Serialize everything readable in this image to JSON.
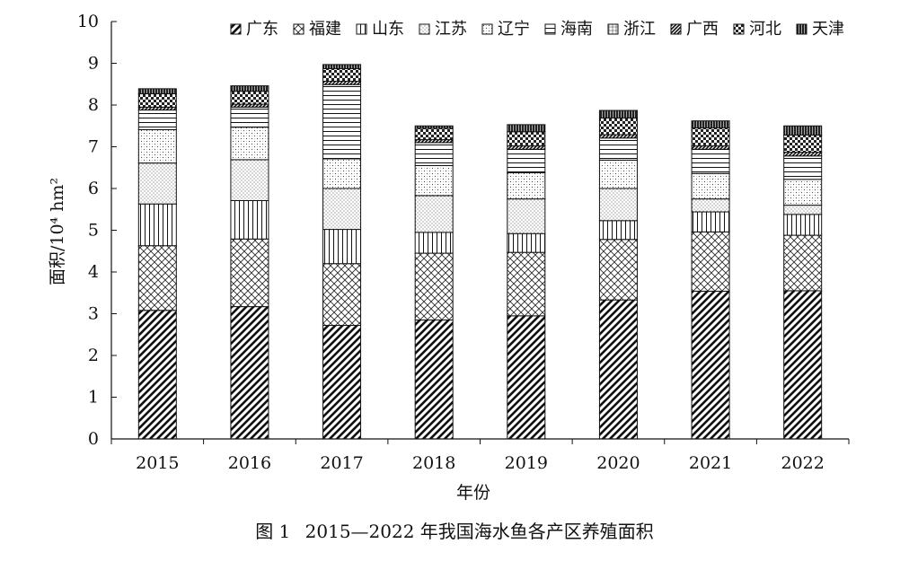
{
  "figure_caption": {
    "prefix": "图 1",
    "text": "2015—2022 年我国海水鱼各产区养殖面积"
  },
  "chart_data": {
    "type": "bar",
    "stacked": true,
    "categories": [
      "2015",
      "2016",
      "2017",
      "2018",
      "2019",
      "2020",
      "2021",
      "2022"
    ],
    "xlabel": "年份",
    "ylabel": "面积/10⁴ hm²",
    "ylim": [
      0,
      10
    ],
    "yticks": [
      0,
      1,
      2,
      3,
      4,
      5,
      6,
      7,
      8,
      9,
      10
    ],
    "grid": false,
    "legend_position": "top-right",
    "series": [
      {
        "name": "广东",
        "pattern": "diag-bold",
        "values": [
          3.08,
          3.17,
          2.72,
          2.85,
          2.95,
          3.33,
          3.54,
          3.55
        ]
      },
      {
        "name": "福建",
        "pattern": "crosshatch",
        "values": [
          1.55,
          1.62,
          1.48,
          1.6,
          1.52,
          1.45,
          1.42,
          1.33
        ]
      },
      {
        "name": "山东",
        "pattern": "vertical",
        "values": [
          1.0,
          0.92,
          0.82,
          0.5,
          0.45,
          0.45,
          0.48,
          0.5
        ]
      },
      {
        "name": "江苏",
        "pattern": "dots",
        "values": [
          0.98,
          0.98,
          0.98,
          0.88,
          0.83,
          0.77,
          0.31,
          0.22
        ]
      },
      {
        "name": "辽宁",
        "pattern": "grid-dots",
        "values": [
          0.8,
          0.78,
          0.71,
          0.72,
          0.63,
          0.68,
          0.61,
          0.62
        ]
      },
      {
        "name": "海南",
        "pattern": "horizontal",
        "values": [
          0.47,
          0.48,
          1.78,
          0.55,
          0.56,
          0.53,
          0.58,
          0.56
        ]
      },
      {
        "name": "浙江",
        "pattern": "fine-grid",
        "values": [
          0.0,
          0.0,
          0.0,
          0.0,
          0.0,
          0.0,
          0.0,
          0.0
        ]
      },
      {
        "name": "广西",
        "pattern": "diag-solid",
        "values": [
          0.07,
          0.07,
          0.08,
          0.07,
          0.08,
          0.08,
          0.08,
          0.09
        ]
      },
      {
        "name": "河北",
        "pattern": "checker",
        "values": [
          0.32,
          0.31,
          0.3,
          0.27,
          0.34,
          0.4,
          0.43,
          0.41
        ]
      },
      {
        "name": "天津",
        "pattern": "dense",
        "values": [
          0.12,
          0.13,
          0.1,
          0.06,
          0.17,
          0.18,
          0.17,
          0.22
        ]
      }
    ]
  }
}
